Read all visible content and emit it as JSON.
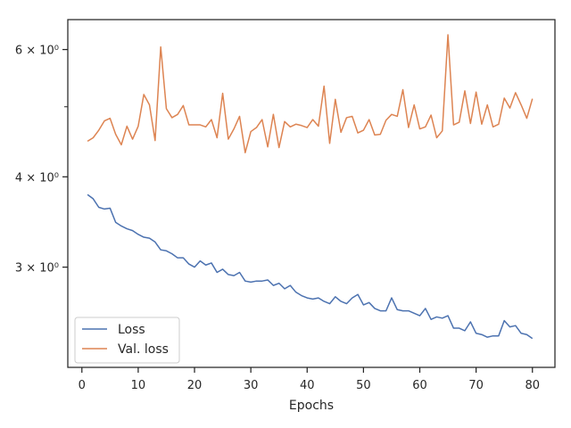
{
  "chart_data": {
    "type": "line",
    "title": "",
    "xlabel": "Epochs",
    "ylabel": "",
    "y_scale": "log",
    "xlim": [
      -2.5,
      84
    ],
    "ylim": [
      2.18,
      6.6
    ],
    "x_ticks": [
      0,
      10,
      20,
      30,
      40,
      50,
      60,
      70,
      80
    ],
    "x_tick_labels": [
      "0",
      "10",
      "20",
      "30",
      "40",
      "50",
      "60",
      "70",
      "80"
    ],
    "y_major_ticks": [
      3,
      4,
      6
    ],
    "y_major_tick_labels": [
      "3 × 10⁰",
      "4 × 10⁰",
      "6 × 10⁰"
    ],
    "y_minor_ticks": [
      5
    ],
    "grid": false,
    "legend_position": "lower-left",
    "series": [
      {
        "name": "Loss",
        "color": "#4c72b0",
        "x": [
          1,
          2,
          3,
          4,
          5,
          6,
          7,
          8,
          9,
          10,
          11,
          12,
          13,
          14,
          15,
          16,
          17,
          18,
          19,
          20,
          21,
          22,
          23,
          24,
          25,
          26,
          27,
          28,
          29,
          30,
          31,
          32,
          33,
          34,
          35,
          36,
          37,
          38,
          39,
          40,
          41,
          42,
          43,
          44,
          45,
          46,
          47,
          48,
          49,
          50,
          51,
          52,
          53,
          54,
          55,
          56,
          57,
          58,
          59,
          60,
          61,
          62,
          63,
          64,
          65,
          66,
          67,
          68,
          69,
          70,
          71,
          72,
          73,
          74,
          75,
          76,
          77,
          78,
          79,
          80
        ],
        "values": [
          3.78,
          3.73,
          3.63,
          3.61,
          3.62,
          3.46,
          3.42,
          3.39,
          3.37,
          3.33,
          3.3,
          3.29,
          3.25,
          3.17,
          3.16,
          3.13,
          3.09,
          3.09,
          3.03,
          3.0,
          3.06,
          3.02,
          3.04,
          2.95,
          2.98,
          2.93,
          2.92,
          2.95,
          2.87,
          2.86,
          2.87,
          2.87,
          2.88,
          2.83,
          2.85,
          2.8,
          2.83,
          2.77,
          2.74,
          2.72,
          2.71,
          2.72,
          2.69,
          2.67,
          2.73,
          2.69,
          2.67,
          2.72,
          2.75,
          2.66,
          2.68,
          2.63,
          2.61,
          2.61,
          2.72,
          2.62,
          2.61,
          2.61,
          2.59,
          2.57,
          2.63,
          2.54,
          2.56,
          2.55,
          2.57,
          2.47,
          2.47,
          2.45,
          2.52,
          2.43,
          2.42,
          2.4,
          2.41,
          2.41,
          2.53,
          2.48,
          2.49,
          2.43,
          2.42,
          2.39
        ]
      },
      {
        "name": "Val. loss",
        "color": "#dd8452",
        "x": [
          1,
          2,
          3,
          4,
          5,
          6,
          7,
          8,
          9,
          10,
          11,
          12,
          13,
          14,
          15,
          16,
          17,
          18,
          19,
          20,
          21,
          22,
          23,
          24,
          25,
          26,
          27,
          28,
          29,
          30,
          31,
          32,
          33,
          34,
          35,
          36,
          37,
          38,
          39,
          40,
          41,
          42,
          43,
          44,
          45,
          46,
          47,
          48,
          49,
          50,
          51,
          52,
          53,
          54,
          55,
          56,
          57,
          58,
          59,
          60,
          61,
          62,
          63,
          64,
          65,
          66,
          67,
          68,
          69,
          70,
          71,
          72,
          73,
          74,
          75,
          76,
          77,
          78,
          79,
          80
        ],
        "values": [
          4.48,
          4.53,
          4.64,
          4.78,
          4.82,
          4.58,
          4.43,
          4.7,
          4.51,
          4.7,
          5.2,
          5.03,
          4.49,
          6.05,
          4.97,
          4.83,
          4.88,
          5.02,
          4.72,
          4.72,
          4.72,
          4.69,
          4.8,
          4.53,
          5.22,
          4.51,
          4.66,
          4.85,
          4.32,
          4.62,
          4.68,
          4.8,
          4.4,
          4.88,
          4.39,
          4.77,
          4.69,
          4.73,
          4.71,
          4.68,
          4.8,
          4.7,
          5.34,
          4.45,
          5.12,
          4.61,
          4.83,
          4.85,
          4.6,
          4.64,
          4.8,
          4.57,
          4.58,
          4.79,
          4.88,
          4.85,
          5.28,
          4.68,
          5.03,
          4.66,
          4.69,
          4.87,
          4.53,
          4.63,
          6.29,
          4.72,
          4.76,
          5.26,
          4.74,
          5.24,
          4.73,
          5.03,
          4.69,
          4.73,
          5.14,
          4.98,
          5.23,
          5.03,
          4.82,
          5.13
        ]
      }
    ]
  }
}
